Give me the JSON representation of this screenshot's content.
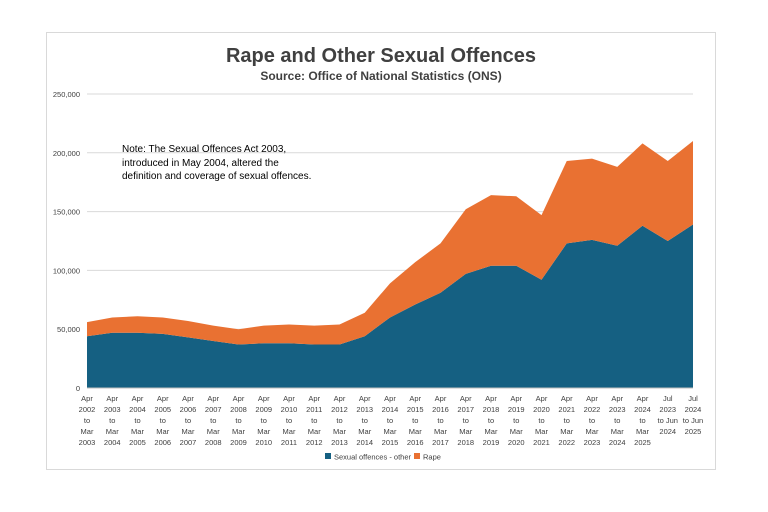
{
  "chart_data": {
    "type": "area",
    "stacked": true,
    "title": "Rape and Other Sexual Offences",
    "subtitle": "Source: Office of National Statistics (ONS)",
    "note": [
      "Note: The Sexual Offences Act 2003,",
      "introduced in May 2004, altered the",
      "definition and coverage of sexual offences."
    ],
    "categories": [
      [
        "Apr",
        "2002",
        "to",
        "Mar",
        "2003"
      ],
      [
        "Apr",
        "2003",
        "to",
        "Mar",
        "2004"
      ],
      [
        "Apr",
        "2004",
        "to",
        "Mar",
        "2005"
      ],
      [
        "Apr",
        "2005",
        "to",
        "Mar",
        "2006"
      ],
      [
        "Apr",
        "2006",
        "to",
        "Mar",
        "2007"
      ],
      [
        "Apr",
        "2007",
        "to",
        "Mar",
        "2008"
      ],
      [
        "Apr",
        "2008",
        "to",
        "Mar",
        "2009"
      ],
      [
        "Apr",
        "2009",
        "to",
        "Mar",
        "2010"
      ],
      [
        "Apr",
        "2010",
        "to",
        "Mar",
        "2011"
      ],
      [
        "Apr",
        "2011",
        "to",
        "Mar",
        "2012"
      ],
      [
        "Apr",
        "2012",
        "to",
        "Mar",
        "2013"
      ],
      [
        "Apr",
        "2013",
        "to",
        "Mar",
        "2014"
      ],
      [
        "Apr",
        "2014",
        "to",
        "Mar",
        "2015"
      ],
      [
        "Apr",
        "2015",
        "to",
        "Mar",
        "2016"
      ],
      [
        "Apr",
        "2016",
        "to",
        "Mar",
        "2017"
      ],
      [
        "Apr",
        "2017",
        "to",
        "Mar",
        "2018"
      ],
      [
        "Apr",
        "2018",
        "to",
        "Mar",
        "2019"
      ],
      [
        "Apr",
        "2019",
        "to",
        "Mar",
        "2020"
      ],
      [
        "Apr",
        "2020",
        "to",
        "Mar",
        "2021"
      ],
      [
        "Apr",
        "2021",
        "to",
        "Mar",
        "2022"
      ],
      [
        "Apr",
        "2022",
        "to",
        "Mar",
        "2023"
      ],
      [
        "Apr",
        "2023",
        "to",
        "Mar",
        "2024"
      ],
      [
        "Apr",
        "2024",
        "to",
        "Mar",
        "2025"
      ],
      [
        "Jul",
        "2023",
        "to Jun",
        "2024"
      ],
      [
        "Jul",
        "2024",
        "to Jun",
        "2025"
      ]
    ],
    "series": [
      {
        "name": "Sexual offences - other",
        "color": "#156082",
        "values": [
          44000,
          47000,
          47000,
          46000,
          43000,
          40000,
          37000,
          38000,
          38000,
          37000,
          37000,
          44000,
          60000,
          71000,
          81000,
          97000,
          104000,
          104000,
          92000,
          123000,
          126000,
          121000,
          138000,
          125000,
          139000
        ]
      },
      {
        "name": "Rape",
        "color": "#E97132",
        "values": [
          12000,
          13000,
          14000,
          14000,
          14000,
          13000,
          13000,
          15000,
          16000,
          16000,
          17000,
          20000,
          29000,
          36000,
          42000,
          55000,
          60000,
          59000,
          55000,
          70000,
          69000,
          67000,
          70000,
          68000,
          71000
        ]
      }
    ],
    "y_ticks": [
      "0",
      "50,000",
      "100,000",
      "150,000",
      "200,000",
      "250,000"
    ],
    "ylim": [
      0,
      250000
    ],
    "y_step": 50000,
    "grid": true,
    "legend_position": "bottom"
  }
}
